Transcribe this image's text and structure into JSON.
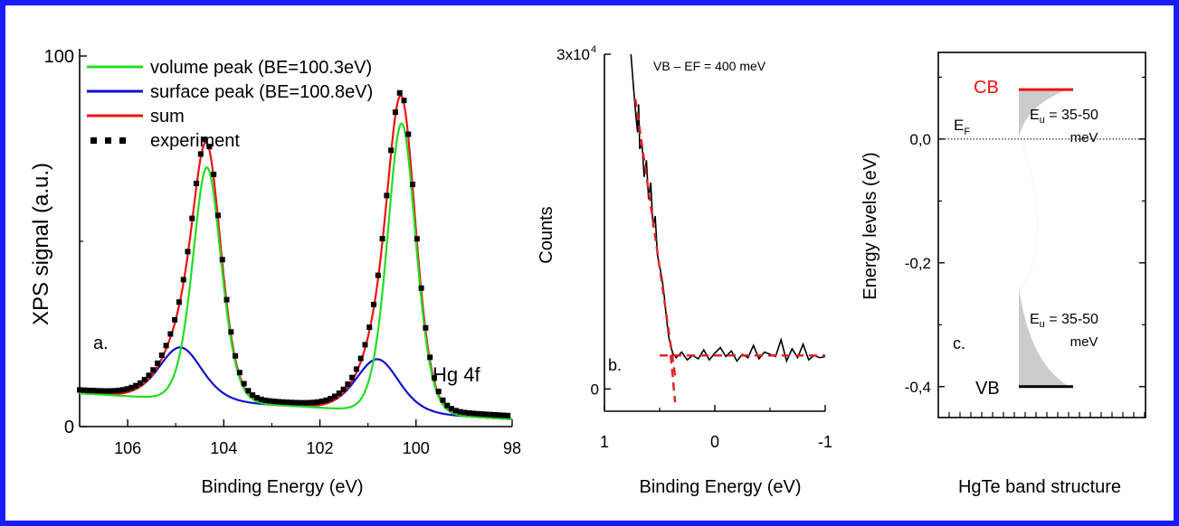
{
  "colors": {
    "frame": "#1a1aff",
    "volume": "#22dd22",
    "surface": "#1111cc",
    "sum": "#ee1111",
    "experiment": "#000000",
    "fit": "#e02020",
    "cb": "#ee1111",
    "vb": "#000000",
    "tail": "#cccccc"
  },
  "chart_data": [
    {
      "type": "line",
      "panel_label": "a.",
      "annotation": "Hg 4f",
      "xlabel": "Binding Energy (eV)",
      "ylabel": "XPS signal (a.u.)",
      "xlim": [
        107,
        98
      ],
      "ylim": [
        0,
        100
      ],
      "xticks": [
        106,
        104,
        102,
        100,
        98
      ],
      "xtick_labels": [
        "106",
        "104",
        "102",
        "100",
        "98"
      ],
      "yticks": [
        0,
        100
      ],
      "ytick_labels": [
        "0",
        "100"
      ],
      "series": [
        {
          "name": "volume peak (BE=100.3eV)",
          "kind": "line",
          "peaks": [
            {
              "center": 104.35,
              "height": 63,
              "fwhm": 0.8
            },
            {
              "center": 100.3,
              "height": 78,
              "fwhm": 0.8
            }
          ],
          "background": {
            "from": 107,
            "to": 98,
            "start": 9,
            "end": 2
          }
        },
        {
          "name": "surface peak (BE=100.8eV)",
          "kind": "line",
          "peaks": [
            {
              "center": 104.9,
              "height": 14,
              "fwhm": 1.2
            },
            {
              "center": 100.8,
              "height": 14,
              "fwhm": 1.2
            }
          ],
          "background": {
            "from": 107,
            "to": 98,
            "start": 9,
            "end": 2
          }
        },
        {
          "name": "sum",
          "kind": "line"
        },
        {
          "name": "experiment",
          "kind": "markers"
        }
      ]
    },
    {
      "type": "line",
      "panel_label": "b.",
      "annotation": "VB – EF = 400 meV",
      "xlabel": "Binding Energy (eV)",
      "ylabel": "Counts",
      "xlim": [
        1,
        -1
      ],
      "ylim": [
        -2000,
        30000
      ],
      "xticks": [
        1,
        0,
        -1
      ],
      "xtick_labels": [
        "1",
        "0",
        "-1"
      ],
      "yticks": [
        0,
        30000
      ],
      "ytick_labels": [
        "0",
        "3x10"
      ],
      "ytick_exponent": "4",
      "series": [
        {
          "kind": "data",
          "x": [
            0.76,
            0.74,
            0.72,
            0.7,
            0.69,
            0.68,
            0.66,
            0.64,
            0.62,
            0.6,
            0.58,
            0.56,
            0.54,
            0.52,
            0.5,
            0.48,
            0.46,
            0.44,
            0.42,
            0.4,
            0.38,
            0.35,
            0.3,
            0.25,
            0.2,
            0.15,
            0.1,
            0.05,
            0.0,
            -0.05,
            -0.1,
            -0.15,
            -0.2,
            -0.25,
            -0.3,
            -0.35,
            -0.4,
            -0.45,
            -0.5,
            -0.55,
            -0.6,
            -0.65,
            -0.7,
            -0.75,
            -0.8,
            -0.85,
            -0.9,
            -0.95,
            -1.0
          ],
          "y": [
            30000,
            27500,
            25000,
            23000,
            25500,
            21500,
            22000,
            19000,
            20500,
            17000,
            18500,
            14500,
            15500,
            12000,
            11000,
            10000,
            8500,
            6500,
            4800,
            3800,
            3200,
            2800,
            3300,
            2600,
            3000,
            2700,
            3500,
            2600,
            3200,
            3700,
            2900,
            3400,
            2500,
            3100,
            2800,
            3900,
            2700,
            3300,
            3100,
            2900,
            4400,
            2500,
            3600,
            2800,
            4000,
            2600,
            3000,
            2800,
            2900
          ]
        },
        {
          "kind": "fit",
          "x": [
            0.72,
            0.36
          ],
          "y": [
            26000,
            1200
          ]
        },
        {
          "kind": "baseline",
          "x": [
            0.5,
            -1.0
          ],
          "y": [
            3000,
            3000
          ]
        },
        {
          "kind": "fit",
          "x": [
            0.4,
            0.36
          ],
          "y": [
            3000,
            -1200
          ]
        }
      ]
    },
    {
      "type": "diagram",
      "panel_label": "c.",
      "xlabel": "HgTe band structure",
      "ylabel": "Energy levels (eV)",
      "ylim": [
        -0.45,
        0.14
      ],
      "yticks": [
        0.0,
        -0.2,
        -0.4
      ],
      "ytick_labels": [
        "0,0",
        "-0,2",
        "-0,4"
      ],
      "levels": [
        {
          "name": "CB",
          "energy": 0.08
        },
        {
          "name": "VB",
          "energy": -0.4
        },
        {
          "name": "E",
          "subscript": "F",
          "energy": 0.0
        }
      ],
      "urbach_labels": [
        {
          "prefix": "E",
          "subscript": "u",
          "text": " = 35-50",
          "unit": "meV"
        },
        {
          "prefix": "E",
          "subscript": "u",
          "text": " = 35-50",
          "unit": "meV"
        }
      ]
    }
  ]
}
